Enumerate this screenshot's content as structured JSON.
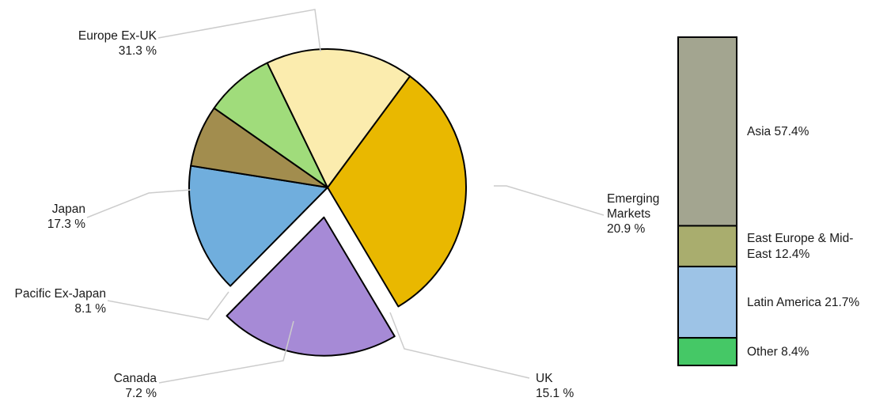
{
  "chart_data": [
    {
      "type": "pie",
      "exploded": "Emerging Markets",
      "slices": [
        {
          "name": "Europe Ex-UK",
          "value": 31.3,
          "value_label": "31.3 %",
          "color": "#E9B800"
        },
        {
          "name": "Emerging Markets",
          "value": 20.9,
          "value_label": "20.9 %",
          "color": "#A68AD6"
        },
        {
          "name": "UK",
          "value": 15.1,
          "value_label": "15.1 %",
          "color": "#70AEDD"
        },
        {
          "name": "Canada",
          "value": 7.2,
          "value_label": "7.2 %",
          "color": "#A28D4E"
        },
        {
          "name": "Pacific Ex-Japan",
          "value": 8.1,
          "value_label": "8.1 %",
          "color": "#A0DC7B"
        },
        {
          "name": "Japan",
          "value": 17.3,
          "value_label": "17.3 %",
          "color": "#FBECAE"
        }
      ],
      "leader_line_color": "#cccccc"
    },
    {
      "type": "bar",
      "stacked": true,
      "description_of": "Emerging Markets",
      "segments": [
        {
          "name": "Asia",
          "value": 57.4,
          "label": "Asia 57.4%",
          "color": "#A3A590"
        },
        {
          "name": "East Europe & Mid-East",
          "value": 12.4,
          "label_lines": [
            "East Europe & Mid-",
            "East 12.4%"
          ],
          "color": "#A9AD6E"
        },
        {
          "name": "Latin America",
          "value": 21.7,
          "label": "Latin America 21.7%",
          "color": "#9DC3E6"
        },
        {
          "name": "Other",
          "value": 8.4,
          "label": "Other 8.4%",
          "color": "#45C866"
        }
      ]
    }
  ]
}
